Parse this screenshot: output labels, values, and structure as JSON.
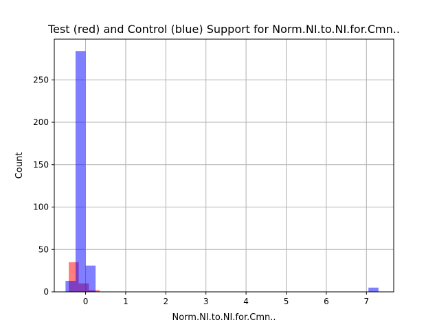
{
  "chart_data": {
    "type": "bar",
    "title": "Test (red) and Control (blue) Support for Norm.NI.to.NI.for.Cmn..",
    "xlabel": "Norm.NI.to.NI.for.Cmn..",
    "ylabel": "Count",
    "xlim": [
      -0.78,
      7.68
    ],
    "ylim": [
      0,
      298
    ],
    "grid": true,
    "xticks": [
      0,
      1,
      2,
      3,
      4,
      5,
      6,
      7
    ],
    "yticks": [
      0,
      50,
      100,
      150,
      200,
      250
    ],
    "series": [
      {
        "color": "#ff0000",
        "opacity": 0.5,
        "bins": [
          {
            "x0": -0.42,
            "x1": -0.17,
            "count": 35
          },
          {
            "x0": -0.17,
            "x1": 0.08,
            "count": 10
          },
          {
            "x0": 0.08,
            "x1": 0.35,
            "count": 2
          }
        ]
      },
      {
        "color": "#0000ff",
        "opacity": 0.5,
        "bins": [
          {
            "x0": -0.5,
            "x1": -0.25,
            "count": 13
          },
          {
            "x0": -0.25,
            "x1": 0.0,
            "count": 284
          },
          {
            "x0": 0.0,
            "x1": 0.25,
            "count": 31
          },
          {
            "x0": 7.05,
            "x1": 7.3,
            "count": 5
          }
        ]
      }
    ]
  }
}
